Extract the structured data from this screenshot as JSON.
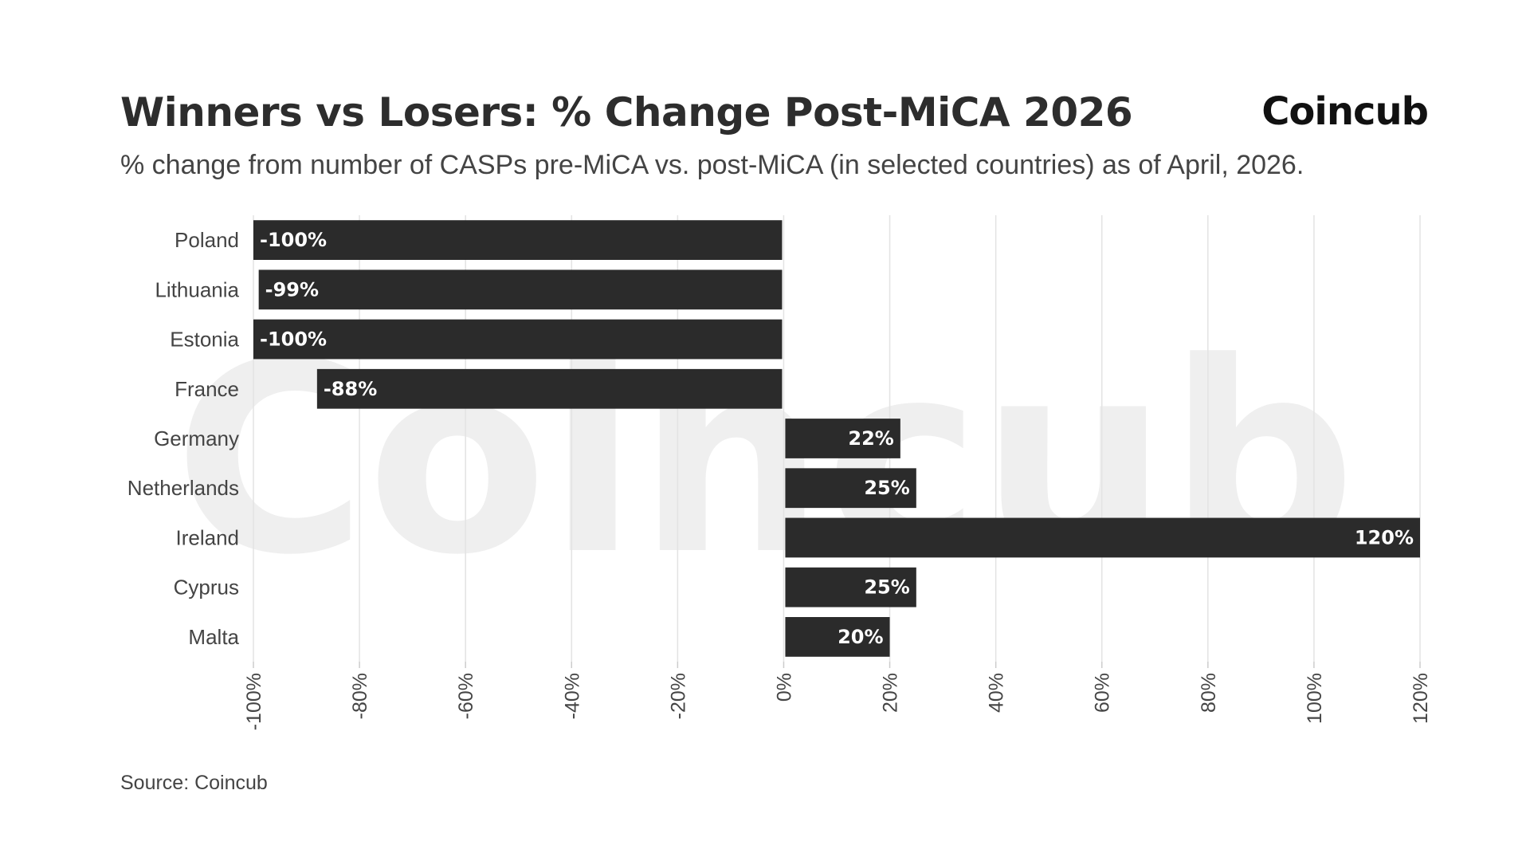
{
  "header": {
    "title": "Winners vs Losers: % Change Post-MiCA 2026",
    "subtitle": "% change from number of CASPs pre-MiCA vs. post-MiCA (in selected countries) as of April, 2026.",
    "brand": "Coincub"
  },
  "watermark": "Coincub",
  "footer": {
    "source": "Source: Coincub"
  },
  "colors": {
    "bar": "#2b2b2b",
    "grid": "#e3e3e3",
    "label_text": "#444444",
    "data_label": "#ffffff",
    "watermark": "#efefef"
  },
  "chart_data": {
    "type": "bar",
    "orientation": "horizontal",
    "categories": [
      "Poland",
      "Lithuania",
      "Estonia",
      "France",
      "Germany",
      "Netherlands",
      "Ireland",
      "Cyprus",
      "Malta"
    ],
    "values": [
      -100,
      -99,
      -100,
      -88,
      22,
      25,
      120,
      25,
      20
    ],
    "data_labels": [
      "-100%",
      "-99%",
      "-100%",
      "-88%",
      "22%",
      "25%",
      "120%",
      "25%",
      "20%"
    ],
    "xlim": [
      -100,
      120
    ],
    "xticks": [
      -100,
      -80,
      -60,
      -40,
      -20,
      0,
      20,
      40,
      60,
      80,
      100,
      120
    ],
    "xtick_labels": [
      "-100%",
      "-80%",
      "-60%",
      "-40%",
      "-20%",
      "0%",
      "20%",
      "40%",
      "60%",
      "80%",
      "100%",
      "120%"
    ],
    "grid": true,
    "legend": "none"
  }
}
